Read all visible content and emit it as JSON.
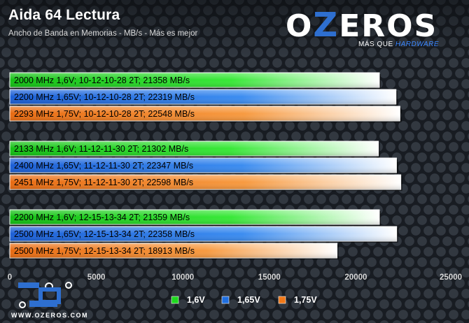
{
  "header": {
    "title": "Aida 64 Lectura",
    "subtitle": "Ancho de Banda en Memorias - MB/s - Más es mejor"
  },
  "logo": {
    "word": "OZEROS",
    "tagline_prefix": "MÁS QUE",
    "tagline_suffix": "HARDWARE",
    "url": "WWW.OZEROS.COM"
  },
  "colors": {
    "green": "#1ed81e",
    "blue": "#1f6fe0",
    "orange": "#f07818",
    "axis_text": "#d8d8d8"
  },
  "chart_data": {
    "type": "bar",
    "orientation": "horizontal",
    "title": "Aida 64 Lectura",
    "subtitle": "Ancho de Banda en Memorias - MB/s - Más es mejor",
    "xlim": [
      0,
      25000
    ],
    "xticks": [
      0,
      5000,
      10000,
      15000,
      20000,
      25000
    ],
    "legend": {
      "placement": "bottom",
      "entries": [
        {
          "label": "1,6V",
          "color": "#1ed81e"
        },
        {
          "label": "1,65V",
          "color": "#1f6fe0"
        },
        {
          "label": "1,75V",
          "color": "#f07818"
        }
      ]
    },
    "groups": [
      {
        "bars": [
          {
            "freq": "2000 MHz",
            "desc": "1,6V; 10-12-10-28 2T;",
            "value": 21358,
            "unit": "MB/s",
            "color": "green"
          },
          {
            "freq": "2200 MHz",
            "desc": "1,65V; 10-12-10-28 2T;",
            "value": 22319,
            "unit": "MB/s",
            "color": "blue"
          },
          {
            "freq": "2293 MHz",
            "desc": "1,75V; 10-12-10-28 2T;",
            "value": 22548,
            "unit": "MB/s",
            "color": "orange"
          }
        ]
      },
      {
        "bars": [
          {
            "freq": "2133 MHz",
            "desc": "1,6V; 11-12-11-30 2T;",
            "value": 21302,
            "unit": "MB/s",
            "color": "green"
          },
          {
            "freq": "2400 MHz",
            "desc": "1,65V; 11-12-11-30 2T;",
            "value": 22347,
            "unit": "MB/s",
            "color": "blue"
          },
          {
            "freq": "2451 MHz",
            "desc": "1,75V; 11-12-11-30 2T;",
            "value": 22598,
            "unit": "MB/s",
            "color": "orange"
          }
        ]
      },
      {
        "bars": [
          {
            "freq": "2200 MHz",
            "desc": "1,6V; 12-15-13-34 2T;",
            "value": 21359,
            "unit": "MB/s",
            "color": "green"
          },
          {
            "freq": "2500 MHz",
            "desc": "1,65V; 12-15-13-34 2T;",
            "value": 22358,
            "unit": "MB/s",
            "color": "blue"
          },
          {
            "freq": "2500 MHz",
            "desc": "1,75V; 12-15-13-34 2T;",
            "value": 18913,
            "unit": "MB/s",
            "color": "orange"
          }
        ]
      }
    ]
  }
}
